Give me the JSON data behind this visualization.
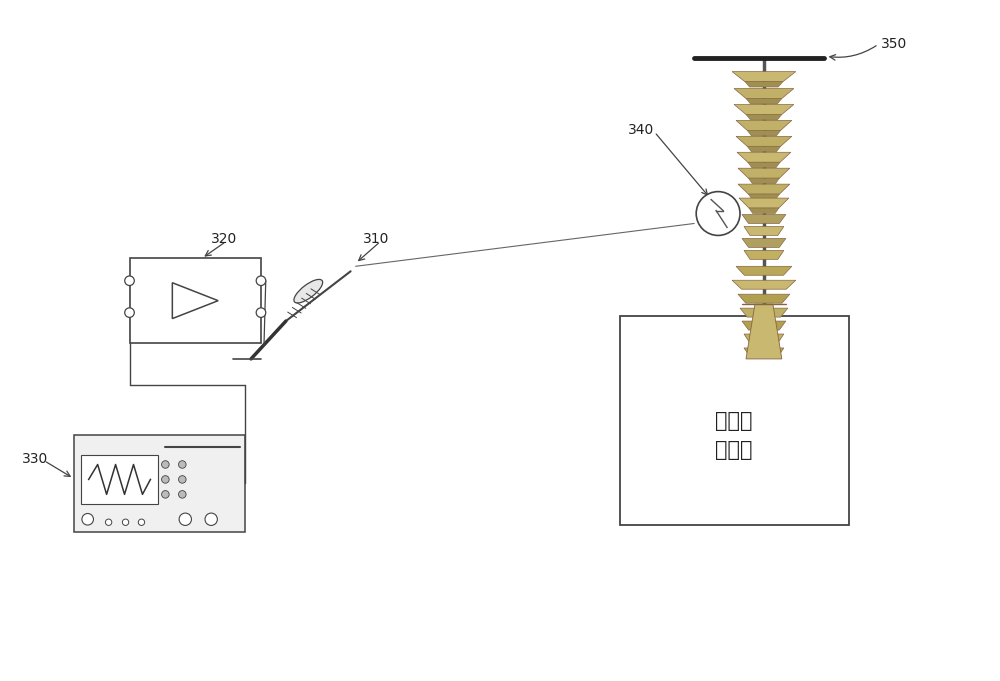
{
  "bg_color": "#ffffff",
  "line_color": "#444444",
  "line_color_dark": "#222222",
  "label_310": "310",
  "label_320": "320",
  "label_330": "330",
  "label_340": "340",
  "label_350": "350",
  "box_text": "大型电\n力设备",
  "fig_width": 10.0,
  "fig_height": 6.81,
  "dpi": 100,
  "ins_colors": [
    "#c8b878",
    "#b8a868",
    "#d0c080",
    "#c0b070",
    "#b0a060"
  ],
  "gray_light": "#d8d8d8",
  "gray_mid": "#aaaaaa",
  "gray_dark": "#888888"
}
